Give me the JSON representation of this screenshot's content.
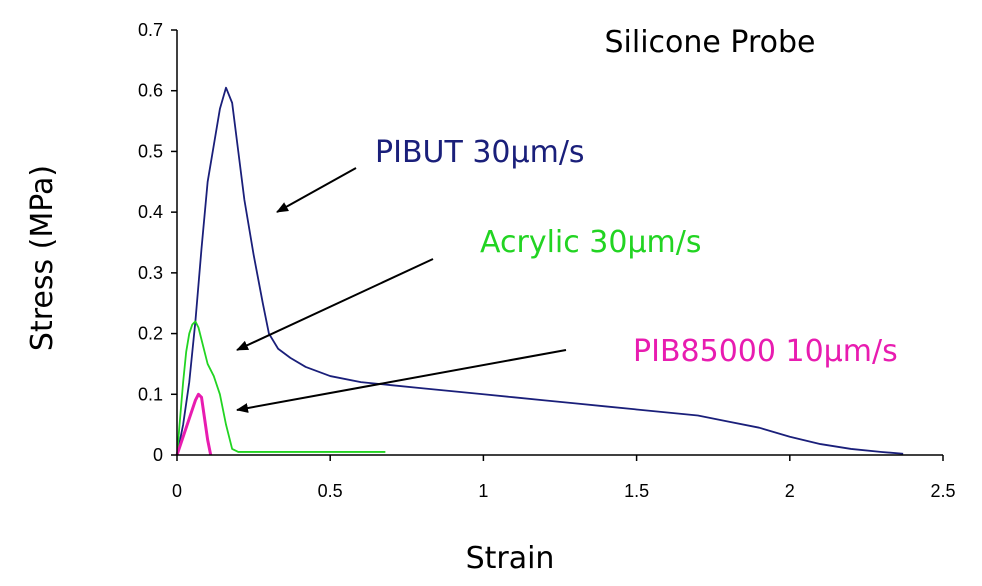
{
  "chart_data": {
    "type": "line",
    "title": "Silicone Probe",
    "xlabel": "Strain",
    "ylabel": "Stress (MPa)",
    "xlim": [
      0,
      2.5
    ],
    "ylim": [
      0,
      0.7
    ],
    "xticks": [
      "0",
      "0.5",
      "1",
      "1.5",
      "2",
      "2.5"
    ],
    "yticks": [
      "0",
      "0.1",
      "0.2",
      "0.3",
      "0.4",
      "0.5",
      "0.6",
      "0.7"
    ],
    "grid": false,
    "legend": "none",
    "series": [
      {
        "name": "PIBUT 30µm/s",
        "color": "#1a1f7a",
        "x": [
          0,
          0.02,
          0.04,
          0.06,
          0.08,
          0.1,
          0.12,
          0.14,
          0.16,
          0.18,
          0.2,
          0.22,
          0.25,
          0.28,
          0.3,
          0.33,
          0.37,
          0.42,
          0.5,
          0.6,
          0.7,
          0.8,
          0.9,
          1.0,
          1.1,
          1.2,
          1.3,
          1.4,
          1.5,
          1.6,
          1.7,
          1.8,
          1.9,
          2.0,
          2.1,
          2.2,
          2.3,
          2.37
        ],
        "y": [
          0,
          0.05,
          0.12,
          0.22,
          0.34,
          0.45,
          0.51,
          0.57,
          0.605,
          0.58,
          0.5,
          0.42,
          0.33,
          0.25,
          0.2,
          0.175,
          0.16,
          0.145,
          0.13,
          0.12,
          0.115,
          0.11,
          0.105,
          0.1,
          0.095,
          0.09,
          0.085,
          0.08,
          0.075,
          0.07,
          0.065,
          0.055,
          0.045,
          0.03,
          0.018,
          0.01,
          0.005,
          0.002
        ]
      },
      {
        "name": "Acrylic 30µm/s",
        "color": "#22d422",
        "x": [
          0,
          0.01,
          0.02,
          0.03,
          0.04,
          0.05,
          0.06,
          0.07,
          0.08,
          0.1,
          0.12,
          0.14,
          0.16,
          0.18,
          0.2,
          0.3,
          0.4,
          0.5,
          0.6,
          0.68
        ],
        "y": [
          0,
          0.06,
          0.12,
          0.17,
          0.2,
          0.215,
          0.22,
          0.21,
          0.19,
          0.15,
          0.13,
          0.1,
          0.05,
          0.01,
          0.005,
          0.005,
          0.005,
          0.005,
          0.005,
          0.005
        ]
      },
      {
        "name": "PIB85000 10µm/s",
        "color": "#e81cb0",
        "x": [
          0,
          0.02,
          0.04,
          0.06,
          0.07,
          0.08,
          0.09,
          0.1,
          0.11
        ],
        "y": [
          0,
          0.03,
          0.06,
          0.09,
          0.1,
          0.095,
          0.06,
          0.025,
          0
        ]
      }
    ],
    "annotations": [
      {
        "text": "PIBUT 30µm/s",
        "color": "#1a1f7a"
      },
      {
        "text": "Acrylic 30µm/s",
        "color": "#22d422"
      },
      {
        "text": "PIB85000 10µm/s",
        "color": "#e81cb0"
      }
    ]
  }
}
